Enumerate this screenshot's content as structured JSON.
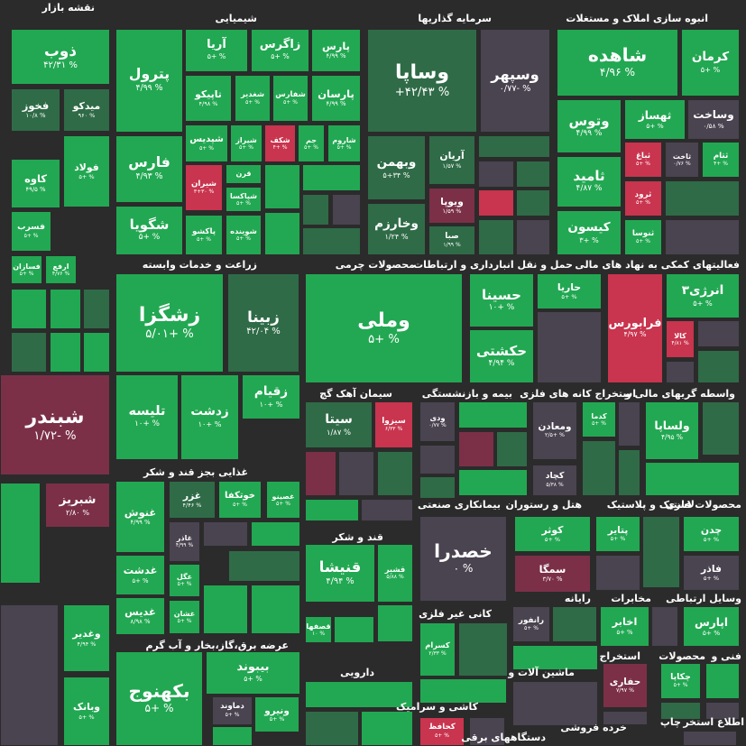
{
  "sectors": [
    {
      "label": "نقشه بازار"
    },
    {
      "label": "شیمیایی"
    },
    {
      "label": "سرمایه گذاریها"
    },
    {
      "label": "انبوه سازی املاک و مستغلات"
    },
    {
      "label": "زراعت و خدمات وابسته"
    },
    {
      "label": "محصولات چرمی"
    },
    {
      "label": "حمل و نقل انبارداری و ارتباطات"
    },
    {
      "label": "فعالیتهای کمکی به نهاد های مالی"
    },
    {
      "label": "سیمان آهک گچ"
    },
    {
      "label": "بیمه و بازنشستگی"
    },
    {
      "label": "استخراج کانه های فلزی"
    },
    {
      "label": "واسطه گریهای مالی و"
    },
    {
      "label": "غذایی بجز قند و شکر"
    },
    {
      "label": "بیمانکاری صنعتی"
    },
    {
      "label": "هتل و رستوران"
    },
    {
      "label": "لاستیک و پلاستیک"
    },
    {
      "label": "محصولات فلزی"
    },
    {
      "label": "قند و شکر"
    },
    {
      "label": "رایانه"
    },
    {
      "label": "مخابرات"
    },
    {
      "label": "وسایل ارتباطی"
    },
    {
      "label": "کانی غیر فلزی"
    },
    {
      "label": "عرضه برق،گاز،بخار و آب گرم"
    },
    {
      "label": "دارویی"
    },
    {
      "label": "ماشین آلات و"
    },
    {
      "label": "استخراج"
    },
    {
      "label": "محصولات"
    },
    {
      "label": "فنی و"
    },
    {
      "label": "کاشی و سرامیک"
    },
    {
      "label": "خرده فروشی"
    },
    {
      "label": "چاپ"
    },
    {
      "label": "اطلاع استخر"
    },
    {
      "label": "دستگاههای برقی"
    }
  ],
  "tiles": [
    {
      "name": "ذوب",
      "change": "۴۲/۳۱ %"
    },
    {
      "name": "فخوز",
      "change": "۱۰/۸ %"
    },
    {
      "name": "میدکو",
      "change": "۹۶۰ %"
    },
    {
      "name": "کاوه",
      "change": "۴۹/۵ %"
    },
    {
      "name": "فولاد",
      "change": "۵+ %"
    },
    {
      "name": "فسرب",
      "change": "۵+ %"
    },
    {
      "name": "فسازان",
      "change": "۵+ %"
    },
    {
      "name": "ارفع",
      "change": "۴/۷۶ %"
    },
    {
      "name": "شبندر",
      "change": "۱/۷۲- %"
    },
    {
      "name": "شبریز",
      "change": "۲/۸۰ %"
    },
    {
      "name": "وغدیر",
      "change": "۴/۹۴ %"
    },
    {
      "name": "وبانک",
      "change": "۵+ %"
    },
    {
      "name": "پترول",
      "change": "۴/۹۹ %"
    },
    {
      "name": "فارس",
      "change": "۴/۹۳ %"
    },
    {
      "name": "شگویا",
      "change": "۵+ %"
    },
    {
      "name": "آریا",
      "change": "۵+ %"
    },
    {
      "name": "زاگرس",
      "change": "۵+ %"
    },
    {
      "name": "پارس",
      "change": "۴/۹۹ %"
    },
    {
      "name": "تاپیکو",
      "change": "۴/۹۸ %"
    },
    {
      "name": "شغدیر",
      "change": "۵+ %"
    },
    {
      "name": "شفارس",
      "change": "۵+ %"
    },
    {
      "name": "پارسان",
      "change": "۴/۹۹ %"
    },
    {
      "name": "شپدیس",
      "change": "۵+ %"
    },
    {
      "name": "شیراز",
      "change": "۵+ %"
    },
    {
      "name": "شکف",
      "change": "۴+ %"
    },
    {
      "name": "جم",
      "change": "۵+ %"
    },
    {
      "name": "شاروم",
      "change": "۵+ %"
    },
    {
      "name": "شیران",
      "change": "۳+۳۰ %"
    },
    {
      "name": "قرن",
      "change": "۵+ %"
    },
    {
      "name": "شپاکسا",
      "change": "۵+ %"
    },
    {
      "name": "پاکشو",
      "change": "۵+ %"
    },
    {
      "name": "شوینده",
      "change": "۵+ %"
    },
    {
      "name": "وساپا",
      "change": "+۴۲/۴۳ %"
    },
    {
      "name": "وسپهر",
      "change": "۰/۷۷- %"
    },
    {
      "name": "وبهمن",
      "change": "۵+۳۴ %"
    },
    {
      "name": "آریان",
      "change": "۱/۵۷ %"
    },
    {
      "name": "وخارزم",
      "change": "۱/۲۴ %"
    },
    {
      "name": "ویوپا",
      "change": "۱/۵۹ %"
    },
    {
      "name": "صبا",
      "change": "۱/۹۹ %"
    },
    {
      "name": "شاهده",
      "change": "۴/۹۶ %"
    },
    {
      "name": "کرمان",
      "change": "۵+ %"
    },
    {
      "name": "وتوس",
      "change": "۴/۹۹ %"
    },
    {
      "name": "ثهساز",
      "change": "۵+ %"
    },
    {
      "name": "وساخت",
      "change": "۰/۵۸ %"
    },
    {
      "name": "ثامید",
      "change": "۴/۸۷ %"
    },
    {
      "name": "ثباغ",
      "change": "۵+ %"
    },
    {
      "name": "ثاخت",
      "change": "۰/۷۶ %"
    },
    {
      "name": "ثتام",
      "change": "۴+ %"
    },
    {
      "name": "ثرود",
      "change": "۵+ %"
    },
    {
      "name": "کیسون",
      "change": "۳+ %"
    },
    {
      "name": "ثنوسا",
      "change": "۵+ %"
    },
    {
      "name": "زشگزا",
      "change": "۵/۰۱+ %"
    },
    {
      "name": "زبینا",
      "change": "۴۲/۰۴ %"
    },
    {
      "name": "تلیسه",
      "change": "۱۰+ %"
    },
    {
      "name": "زدشت",
      "change": "۱۰+ %"
    },
    {
      "name": "زقیام",
      "change": "۱۰+ %"
    },
    {
      "name": "وملی",
      "change": "۵+ %"
    },
    {
      "name": "حسینا",
      "change": "۱۰+ %"
    },
    {
      "name": "حاریا",
      "change": "۵+ %"
    },
    {
      "name": "حکشتی",
      "change": "۴/۹۴ %"
    },
    {
      "name": "فرابورس",
      "change": "۴/۹۷ %"
    },
    {
      "name": "انرژی۳",
      "change": "۵+ %"
    },
    {
      "name": "کالا",
      "change": "۴/۸۱ %"
    },
    {
      "name": "سیتا",
      "change": "۱/۸۷ %"
    },
    {
      "name": "سیزوا",
      "change": "۶/۳۳ %"
    },
    {
      "name": "ودی",
      "change": "۰/۷۷ %"
    },
    {
      "name": "ومعادن",
      "change": "۲/۵+ %"
    },
    {
      "name": "کدما",
      "change": "۵+ %"
    },
    {
      "name": "کچاد",
      "change": "۵/۳۸ %"
    },
    {
      "name": "ولساپا",
      "change": "۴/۹۵ %"
    },
    {
      "name": "غنوش",
      "change": "۴/۹۹ %"
    },
    {
      "name": "غزر",
      "change": "۴/۴۶ %"
    },
    {
      "name": "خوتکفا",
      "change": "۵+ %"
    },
    {
      "name": "غصینو",
      "change": "۵+ %"
    },
    {
      "name": "غدشت",
      "change": "۵+ %"
    },
    {
      "name": "غاذر",
      "change": "۴/۹۹ %"
    },
    {
      "name": "غگل",
      "change": "۵+ %"
    },
    {
      "name": "غدیس",
      "change": "۸/۹۸ %"
    },
    {
      "name": "غشان",
      "change": "۵+ %"
    },
    {
      "name": "خصدرا",
      "change": "۰ %"
    },
    {
      "name": "کوثر",
      "change": "۵+ %"
    },
    {
      "name": "سمگا",
      "change": "۳/۷۰ %"
    },
    {
      "name": "پتایر",
      "change": "۵+ %"
    },
    {
      "name": "چدن",
      "change": "۵+ %"
    },
    {
      "name": "فاذر",
      "change": "۵+ %"
    },
    {
      "name": "قنیشا",
      "change": "۴/۹۴ %"
    },
    {
      "name": "قشیر",
      "change": "۵/۸۸ %"
    },
    {
      "name": "قصفها",
      "change": "۱۰ %"
    },
    {
      "name": "رانفور",
      "change": "۵+ %"
    },
    {
      "name": "اخابر",
      "change": "۵+ %"
    },
    {
      "name": "اپارس",
      "change": "۵+ %"
    },
    {
      "name": "کسرام",
      "change": "۲/۳۳ %"
    },
    {
      "name": "حفاری",
      "change": "۷/۹۷ %"
    },
    {
      "name": "چکاپا",
      "change": "۵+ %"
    },
    {
      "name": "بکهنوج",
      "change": "۵+ %"
    },
    {
      "name": "بیبوند",
      "change": "۵+ %"
    },
    {
      "name": "ونیرو",
      "change": "۵+ %"
    },
    {
      "name": "دماوند",
      "change": "۵+ %"
    },
    {
      "name": "کحافظ",
      "change": "۵+ %"
    }
  ]
}
